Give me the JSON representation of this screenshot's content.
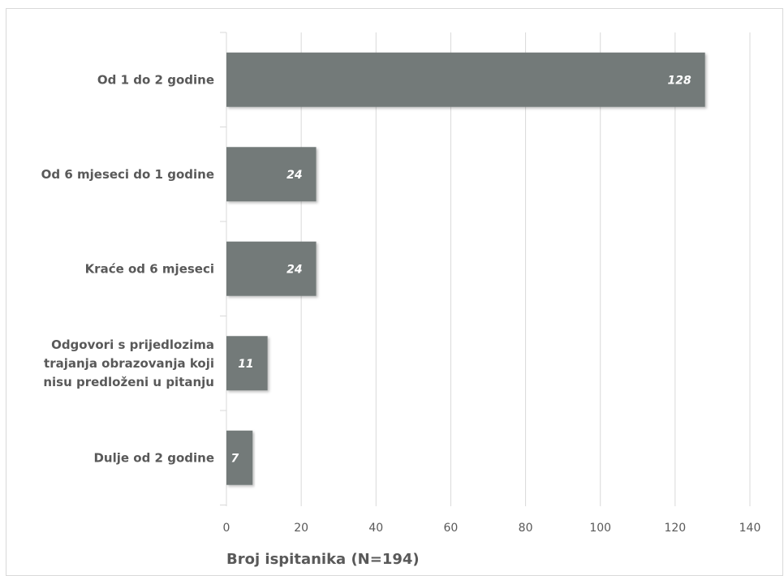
{
  "chart_data": {
    "type": "bar",
    "orientation": "horizontal",
    "categories": [
      [
        "Od 1 do 2 godine"
      ],
      [
        "Od 6 mjeseci do 1 godine"
      ],
      [
        "Kraće od 6 mjeseci"
      ],
      [
        "Odgovori s prijedlozima",
        "trajanja obrazovanja koji",
        "nisu predloženi u pitanju"
      ],
      [
        "Dulje od 2 godine"
      ]
    ],
    "values": [
      128,
      24,
      24,
      11,
      7
    ],
    "data_labels": [
      "128",
      "24",
      "24",
      "11",
      "7"
    ],
    "xlabel": "Broj ispitanika (N=194)",
    "ylabel": "",
    "title": "",
    "xlim": [
      0,
      140
    ],
    "xticks": [
      0,
      20,
      40,
      60,
      80,
      100,
      120,
      140
    ],
    "xtick_labels": [
      "0",
      "20",
      "40",
      "60",
      "80",
      "100",
      "120",
      "140"
    ],
    "grid": "vertical",
    "legend": "none",
    "colors": {
      "bar": "#737a79",
      "grid": "#d9d9d9",
      "text": "#595959",
      "data_label": "#ffffff"
    }
  }
}
